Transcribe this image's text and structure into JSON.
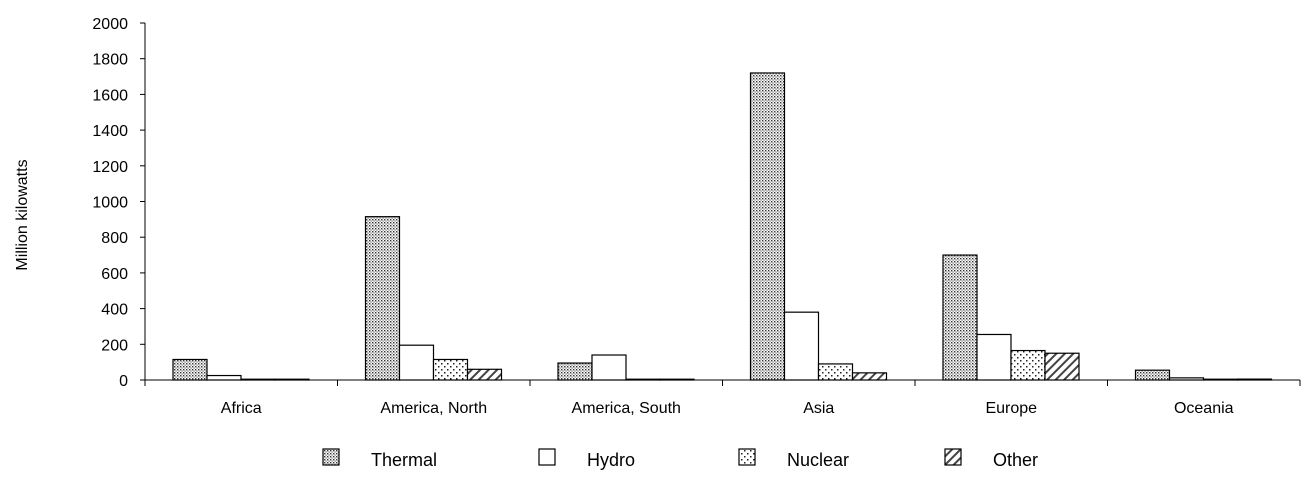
{
  "chart_data": {
    "type": "bar",
    "title": "",
    "xlabel": "",
    "ylabel": "Million kilowatts",
    "ylim": [
      0,
      2000
    ],
    "yticks": [
      0,
      200,
      400,
      600,
      800,
      1000,
      1200,
      1400,
      1600,
      1800,
      2000
    ],
    "grid": false,
    "legend_position": "bottom",
    "categories": [
      "Africa",
      "America, North",
      "America, South",
      "Asia",
      "Europe",
      "Oceania"
    ],
    "series": [
      {
        "name": "Thermal",
        "pattern": "dense-dots",
        "values": [
          115,
          915,
          95,
          1720,
          700,
          55
        ]
      },
      {
        "name": "Hydro",
        "pattern": "white",
        "values": [
          25,
          195,
          140,
          380,
          255,
          12
        ]
      },
      {
        "name": "Nuclear",
        "pattern": "sparse-dots",
        "values": [
          3,
          115,
          3,
          90,
          165,
          0
        ]
      },
      {
        "name": "Other",
        "pattern": "diagonal",
        "values": [
          2,
          60,
          2,
          40,
          150,
          5
        ]
      }
    ]
  }
}
